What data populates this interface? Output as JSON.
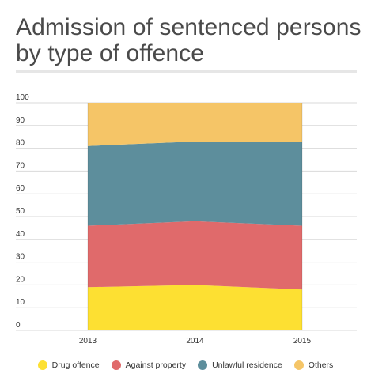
{
  "title": "Admission of sentenced persons by type of offence",
  "chart_data": {
    "type": "area",
    "stacked": true,
    "title": "Admission of sentenced persons by type of offence",
    "x": [
      "2013",
      "2014",
      "2015"
    ],
    "ylim": [
      0,
      100
    ],
    "yticks": [
      0,
      10,
      20,
      30,
      40,
      50,
      60,
      70,
      80,
      90,
      100
    ],
    "grid": true,
    "legend": "bottom",
    "series": [
      {
        "name": "Drug offence",
        "color": "#fde032",
        "values": [
          19,
          20,
          18
        ]
      },
      {
        "name": "Against property",
        "color": "#e06a6b",
        "values": [
          27,
          28,
          28
        ]
      },
      {
        "name": "Unlawful residence",
        "color": "#5d8e9c",
        "values": [
          35,
          35,
          37
        ]
      },
      {
        "name": "Others",
        "color": "#f5c567",
        "values": [
          19,
          17,
          17
        ]
      }
    ]
  }
}
